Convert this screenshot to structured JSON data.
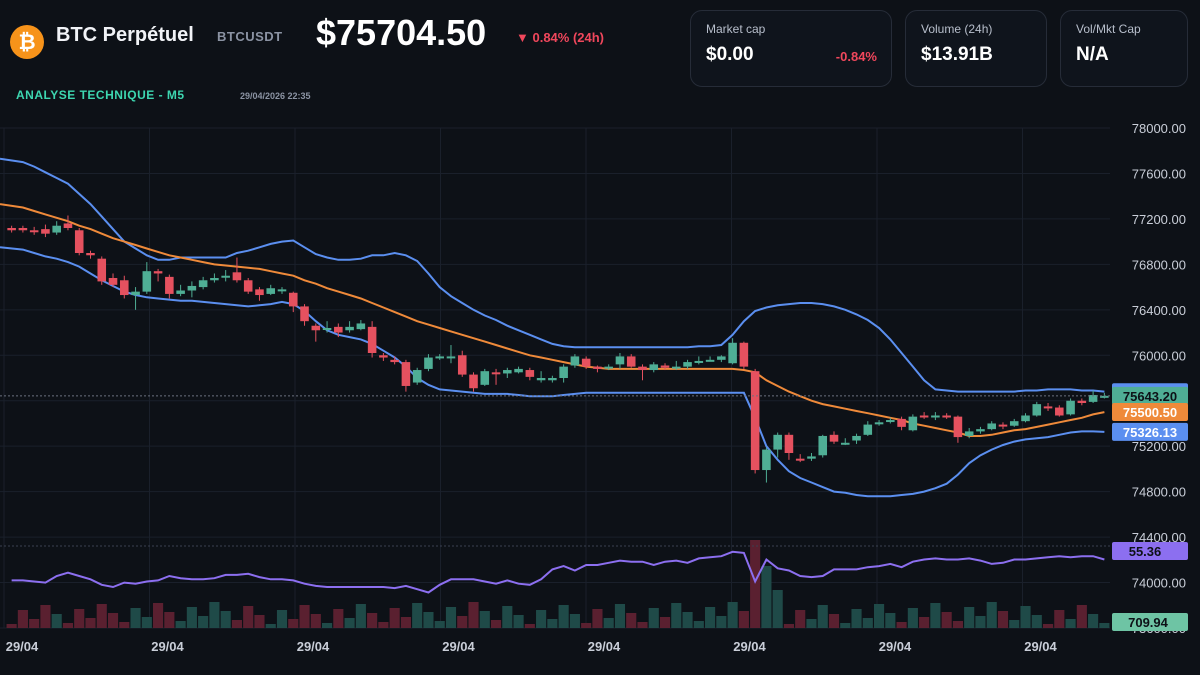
{
  "header": {
    "logo_glyph": "₿",
    "title": "BTC Perpétuel",
    "symbol": "BTCUSDT",
    "price": "$75704.50",
    "change": "▼ 0.84% (24h)",
    "analysis_label": "ANALYSE TECHNIQUE - M5",
    "datetime": "29/04/2026 22:35"
  },
  "cards": [
    {
      "label": "Market cap",
      "value": "$0.00",
      "sub": "-0.84%"
    },
    {
      "label": "Volume (24h)",
      "value": "$13.91B",
      "sub": ""
    },
    {
      "label": "Vol/Mkt Cap",
      "value": "N/A",
      "sub": ""
    }
  ],
  "colors": {
    "up": "#4fae95",
    "down": "#e5515f",
    "bollinger": "#5b8ff0",
    "ma": "#ef8a3a",
    "rsi": "#8c6ff0",
    "vol_up": "#1f4a48",
    "vol_down": "#5a2030",
    "background": "#0d1117"
  },
  "chart_data": {
    "type": "candlestick",
    "title": "",
    "y_ticks": [
      "78000.00",
      "77600.00",
      "77200.00",
      "76800.00",
      "76400.00",
      "76000.00",
      "75600.00",
      "75200.00",
      "74800.00",
      "74400.00",
      "74000.00",
      "73600.00"
    ],
    "ylim": [
      73600,
      78000
    ],
    "x_ticks": [
      "29/04",
      "29/04",
      "29/04",
      "29/04",
      "29/04",
      "29/04",
      "29/04",
      "29/04"
    ],
    "price_labels": [
      {
        "value": 75674.87,
        "text": "75674.87",
        "series": "upper_band"
      },
      {
        "value": 75643.2,
        "text": "75643.20",
        "series": "last_price"
      },
      {
        "value": 75500.5,
        "text": "75500.50",
        "series": "moving_average"
      },
      {
        "value": 75326.13,
        "text": "75326.13",
        "series": "lower_band"
      }
    ],
    "rsi_label": "55.36",
    "volume_label": "709.94",
    "candles": [
      {
        "o": 77120,
        "c": 77100,
        "h": 77140,
        "l": 77080
      },
      {
        "o": 77120,
        "c": 77100,
        "h": 77140,
        "l": 77080
      },
      {
        "o": 77100,
        "c": 77090,
        "h": 77130,
        "l": 77060
      },
      {
        "o": 77110,
        "c": 77070,
        "h": 77150,
        "l": 77040
      },
      {
        "o": 77080,
        "c": 77140,
        "h": 77180,
        "l": 77060
      },
      {
        "o": 77160,
        "c": 77120,
        "h": 77230,
        "l": 77100
      },
      {
        "o": 77100,
        "c": 76900,
        "h": 77120,
        "l": 76880
      },
      {
        "o": 76900,
        "c": 76880,
        "h": 76920,
        "l": 76850
      },
      {
        "o": 76850,
        "c": 76650,
        "h": 76870,
        "l": 76620
      },
      {
        "o": 76680,
        "c": 76620,
        "h": 76720,
        "l": 76600
      },
      {
        "o": 76660,
        "c": 76530,
        "h": 76700,
        "l": 76500
      },
      {
        "o": 76530,
        "c": 76560,
        "h": 76600,
        "l": 76400
      },
      {
        "o": 76560,
        "c": 76740,
        "h": 76820,
        "l": 76540
      },
      {
        "o": 76740,
        "c": 76720,
        "h": 76760,
        "l": 76650
      },
      {
        "o": 76690,
        "c": 76540,
        "h": 76710,
        "l": 76500
      },
      {
        "o": 76540,
        "c": 76570,
        "h": 76620,
        "l": 76520
      },
      {
        "o": 76570,
        "c": 76610,
        "h": 76650,
        "l": 76510
      },
      {
        "o": 76600,
        "c": 76660,
        "h": 76690,
        "l": 76580
      },
      {
        "o": 76660,
        "c": 76680,
        "h": 76720,
        "l": 76640
      },
      {
        "o": 76690,
        "c": 76700,
        "h": 76750,
        "l": 76650
      },
      {
        "o": 76730,
        "c": 76660,
        "h": 76860,
        "l": 76640
      },
      {
        "o": 76660,
        "c": 76560,
        "h": 76680,
        "l": 76540
      },
      {
        "o": 76580,
        "c": 76530,
        "h": 76600,
        "l": 76480
      },
      {
        "o": 76540,
        "c": 76590,
        "h": 76620,
        "l": 76530
      },
      {
        "o": 76570,
        "c": 76580,
        "h": 76600,
        "l": 76540
      },
      {
        "o": 76550,
        "c": 76430,
        "h": 76560,
        "l": 76380
      },
      {
        "o": 76430,
        "c": 76300,
        "h": 76450,
        "l": 76260
      },
      {
        "o": 76260,
        "c": 76220,
        "h": 76280,
        "l": 76120
      },
      {
        "o": 76230,
        "c": 76240,
        "h": 76300,
        "l": 76200
      },
      {
        "o": 76250,
        "c": 76200,
        "h": 76280,
        "l": 76160
      },
      {
        "o": 76220,
        "c": 76250,
        "h": 76300,
        "l": 76200
      },
      {
        "o": 76230,
        "c": 76280,
        "h": 76310,
        "l": 76220
      },
      {
        "o": 76250,
        "c": 76020,
        "h": 76300,
        "l": 75980
      },
      {
        "o": 76000,
        "c": 75980,
        "h": 76020,
        "l": 75950
      },
      {
        "o": 75960,
        "c": 75940,
        "h": 75990,
        "l": 75920
      },
      {
        "o": 75940,
        "c": 75730,
        "h": 75960,
        "l": 75680
      },
      {
        "o": 75760,
        "c": 75870,
        "h": 75890,
        "l": 75740
      },
      {
        "o": 75880,
        "c": 75980,
        "h": 76010,
        "l": 75860
      },
      {
        "o": 75980,
        "c": 75990,
        "h": 76010,
        "l": 75960
      },
      {
        "o": 75980,
        "c": 75990,
        "h": 76090,
        "l": 75930
      },
      {
        "o": 76000,
        "c": 75830,
        "h": 76040,
        "l": 75810
      },
      {
        "o": 75830,
        "c": 75710,
        "h": 75850,
        "l": 75680
      },
      {
        "o": 75740,
        "c": 75860,
        "h": 75880,
        "l": 75730
      },
      {
        "o": 75850,
        "c": 75840,
        "h": 75880,
        "l": 75740
      },
      {
        "o": 75840,
        "c": 75870,
        "h": 75890,
        "l": 75800
      },
      {
        "o": 75850,
        "c": 75880,
        "h": 75900,
        "l": 75840
      },
      {
        "o": 75870,
        "c": 75810,
        "h": 75890,
        "l": 75780
      },
      {
        "o": 75780,
        "c": 75800,
        "h": 75860,
        "l": 75760
      },
      {
        "o": 75780,
        "c": 75800,
        "h": 75820,
        "l": 75760
      },
      {
        "o": 75800,
        "c": 75900,
        "h": 75920,
        "l": 75760
      },
      {
        "o": 75910,
        "c": 75990,
        "h": 76010,
        "l": 75890
      },
      {
        "o": 75970,
        "c": 75900,
        "h": 75990,
        "l": 75880
      },
      {
        "o": 75900,
        "c": 75880,
        "h": 75910,
        "l": 75850
      },
      {
        "o": 75900,
        "c": 75900,
        "h": 75920,
        "l": 75870
      },
      {
        "o": 75920,
        "c": 75990,
        "h": 76020,
        "l": 75880
      },
      {
        "o": 75990,
        "c": 75900,
        "h": 76010,
        "l": 75890
      },
      {
        "o": 75900,
        "c": 75870,
        "h": 75920,
        "l": 75780
      },
      {
        "o": 75870,
        "c": 75920,
        "h": 75940,
        "l": 75850
      },
      {
        "o": 75910,
        "c": 75890,
        "h": 75930,
        "l": 75870
      },
      {
        "o": 75900,
        "c": 75900,
        "h": 75950,
        "l": 75870
      },
      {
        "o": 75900,
        "c": 75940,
        "h": 75960,
        "l": 75880
      },
      {
        "o": 75940,
        "c": 75950,
        "h": 75990,
        "l": 75920
      },
      {
        "o": 75960,
        "c": 75960,
        "h": 75990,
        "l": 75950
      },
      {
        "o": 75960,
        "c": 75990,
        "h": 76000,
        "l": 75940
      },
      {
        "o": 75930,
        "c": 76110,
        "h": 76150,
        "l": 75920
      },
      {
        "o": 76110,
        "c": 75900,
        "h": 76120,
        "l": 75880
      },
      {
        "o": 75860,
        "c": 74990,
        "h": 75880,
        "l": 74960
      },
      {
        "o": 74990,
        "c": 75170,
        "h": 75190,
        "l": 74880
      },
      {
        "o": 75170,
        "c": 75300,
        "h": 75320,
        "l": 75100
      },
      {
        "o": 75300,
        "c": 75140,
        "h": 75320,
        "l": 75080
      },
      {
        "o": 75090,
        "c": 75080,
        "h": 75130,
        "l": 75060
      },
      {
        "o": 75090,
        "c": 75110,
        "h": 75140,
        "l": 75070
      },
      {
        "o": 75120,
        "c": 75290,
        "h": 75300,
        "l": 75100
      },
      {
        "o": 75300,
        "c": 75240,
        "h": 75330,
        "l": 75220
      },
      {
        "o": 75230,
        "c": 75230,
        "h": 75270,
        "l": 75210
      },
      {
        "o": 75250,
        "c": 75290,
        "h": 75310,
        "l": 75220
      },
      {
        "o": 75300,
        "c": 75390,
        "h": 75420,
        "l": 75290
      },
      {
        "o": 75400,
        "c": 75410,
        "h": 75430,
        "l": 75380
      },
      {
        "o": 75420,
        "c": 75430,
        "h": 75450,
        "l": 75400
      },
      {
        "o": 75440,
        "c": 75370,
        "h": 75460,
        "l": 75340
      },
      {
        "o": 75340,
        "c": 75460,
        "h": 75480,
        "l": 75330
      },
      {
        "o": 75470,
        "c": 75460,
        "h": 75500,
        "l": 75440
      },
      {
        "o": 75460,
        "c": 75470,
        "h": 75500,
        "l": 75430
      },
      {
        "o": 75470,
        "c": 75460,
        "h": 75490,
        "l": 75440
      },
      {
        "o": 75460,
        "c": 75280,
        "h": 75470,
        "l": 75230
      },
      {
        "o": 75290,
        "c": 75330,
        "h": 75360,
        "l": 75270
      },
      {
        "o": 75330,
        "c": 75350,
        "h": 75370,
        "l": 75310
      },
      {
        "o": 75350,
        "c": 75400,
        "h": 75420,
        "l": 75340
      },
      {
        "o": 75390,
        "c": 75380,
        "h": 75410,
        "l": 75350
      },
      {
        "o": 75380,
        "c": 75420,
        "h": 75440,
        "l": 75370
      },
      {
        "o": 75420,
        "c": 75470,
        "h": 75490,
        "l": 75410
      },
      {
        "o": 75470,
        "c": 75570,
        "h": 75590,
        "l": 75460
      },
      {
        "o": 75550,
        "c": 75540,
        "h": 75580,
        "l": 75510
      },
      {
        "o": 75540,
        "c": 75470,
        "h": 75560,
        "l": 75460
      },
      {
        "o": 75480,
        "c": 75600,
        "h": 75620,
        "l": 75470
      },
      {
        "o": 75600,
        "c": 75580,
        "h": 75620,
        "l": 75560
      },
      {
        "o": 75590,
        "c": 75650,
        "h": 75690,
        "l": 75580
      },
      {
        "o": 75640,
        "c": 75643,
        "h": 75670,
        "l": 75620
      }
    ],
    "upper_band": [
      77730,
      77700,
      77660,
      77610,
      77560,
      77510,
      77420,
      77330,
      77220,
      77110,
      77000,
      76940,
      76880,
      76840,
      76840,
      76860,
      76860,
      76860,
      76860,
      76860,
      76900,
      76920,
      76950,
      76980,
      77000,
      77010,
      76950,
      76890,
      76860,
      76840,
      76840,
      76850,
      76880,
      76880,
      76900,
      76880,
      76830,
      76720,
      76600,
      76520,
      76460,
      76400,
      76350,
      76310,
      76260,
      76220,
      76180,
      76140,
      76100,
      76080,
      76070,
      76070,
      76070,
      76070,
      76070,
      76070,
      76070,
      76070,
      76070,
      76070,
      76070,
      76080,
      76080,
      76090,
      76180,
      76300,
      76390,
      76420,
      76440,
      76450,
      76460,
      76460,
      76450,
      76430,
      76400,
      76360,
      76310,
      76240,
      76140,
      76020,
      75900,
      75780,
      75700,
      75690,
      75680,
      75680,
      75680,
      75680,
      75680,
      75680,
      75690,
      75690,
      75700,
      75700,
      75700,
      75690,
      75690,
      75680
    ],
    "moving_average": [
      77330,
      77300,
      77270,
      77240,
      77210,
      77180,
      77140,
      77110,
      77070,
      77030,
      77000,
      76970,
      76940,
      76910,
      76880,
      76860,
      76840,
      76820,
      76800,
      76790,
      76780,
      76770,
      76760,
      76740,
      76720,
      76700,
      76660,
      76630,
      76590,
      76560,
      76530,
      76500,
      76460,
      76420,
      76380,
      76340,
      76300,
      76270,
      76240,
      76210,
      76180,
      76150,
      76120,
      76090,
      76060,
      76030,
      76000,
      75980,
      75960,
      75940,
      75920,
      75900,
      75890,
      75880,
      75880,
      75880,
      75880,
      75880,
      75880,
      75880,
      75880,
      75880,
      75880,
      75880,
      75880,
      75870,
      75850,
      75780,
      75730,
      75680,
      75640,
      75600,
      75570,
      75550,
      75530,
      75510,
      75490,
      75470,
      75450,
      75430,
      75400,
      75380,
      75360,
      75340,
      75320,
      75290,
      75290,
      75300,
      75320,
      75340,
      75350,
      75370,
      75390,
      75410,
      75430,
      75450,
      75480,
      75500
    ],
    "lower_band": [
      76950,
      76930,
      76900,
      76870,
      76850,
      76820,
      76780,
      76720,
      76660,
      76610,
      76560,
      76530,
      76510,
      76500,
      76490,
      76480,
      76480,
      76470,
      76460,
      76450,
      76440,
      76430,
      76440,
      76450,
      76470,
      76450,
      76390,
      76300,
      76220,
      76180,
      76160,
      76140,
      76100,
      76040,
      75980,
      75900,
      75800,
      75740,
      75700,
      75690,
      75680,
      75670,
      75660,
      75660,
      75660,
      75650,
      75640,
      75640,
      75640,
      75650,
      75660,
      75670,
      75670,
      75670,
      75670,
      75670,
      75670,
      75670,
      75670,
      75670,
      75670,
      75670,
      75670,
      75670,
      75670,
      75670,
      75450,
      75200,
      75080,
      74980,
      74920,
      74880,
      74840,
      74800,
      74790,
      74770,
      74760,
      74760,
      74760,
      74770,
      74780,
      74800,
      74830,
      74870,
      74950,
      75050,
      75120,
      75170,
      75210,
      75240,
      75260,
      75270,
      75280,
      75300,
      75320,
      75330,
      75330,
      75326
    ],
    "rsi": [
      36,
      36,
      35,
      34,
      40,
      43,
      40,
      37,
      32,
      30,
      34,
      33,
      35,
      36,
      40,
      38,
      37,
      37,
      38,
      41,
      41,
      42,
      39,
      37,
      37,
      36,
      33,
      31,
      30,
      30,
      30,
      30,
      30,
      30,
      29,
      31,
      28,
      25,
      32,
      37,
      37,
      37,
      35,
      33,
      36,
      33,
      32,
      37,
      46,
      49,
      45,
      50,
      50,
      52,
      54,
      53,
      53,
      50,
      53,
      54,
      52,
      56,
      57,
      58,
      62,
      61,
      35,
      55,
      47,
      45,
      40,
      39,
      40,
      46,
      46,
      46,
      48,
      49,
      51,
      48,
      53,
      55,
      56,
      55,
      55,
      56,
      54,
      51,
      52,
      55,
      55,
      56,
      57,
      58,
      57,
      58,
      58,
      55
    ]
  }
}
